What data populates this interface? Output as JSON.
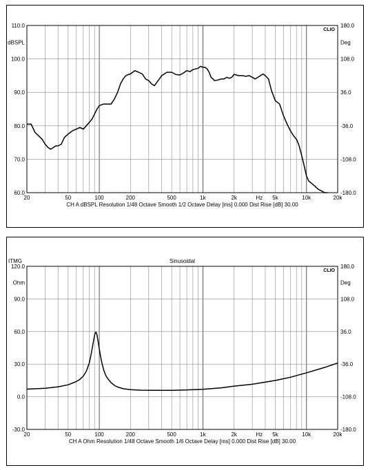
{
  "chart_data": [
    {
      "type": "line",
      "title": "",
      "subtitle": "",
      "brand": "CLIO",
      "left_axis": {
        "unit": "dBSPL",
        "ticks": [
          "110.0",
          "100.0",
          "90.0",
          "80.0",
          "70.0",
          "60.0"
        ],
        "ylim": [
          60,
          110
        ]
      },
      "right_axis": {
        "unit": "Deg",
        "ticks": [
          "180.0",
          "108.0",
          "36.0",
          "-36.0",
          "-108.0",
          "-180.0"
        ],
        "ylim": [
          -180,
          180
        ]
      },
      "x_axis": {
        "scale": "log",
        "xlim": [
          20,
          20000
        ],
        "tick_values": [
          20,
          50,
          100,
          200,
          500,
          1000,
          2000,
          5000,
          10000,
          20000
        ],
        "tick_labels": [
          "20",
          "50",
          "100",
          "200",
          "500",
          "1k",
          "2k",
          "5k",
          "10k",
          "20k"
        ],
        "unit_label": "Hz"
      },
      "info_line": "CH A   dBSPL   Resolution 1/48 Octave   Smooth 1/2 Octave   Delay [ms] 0.000   Dist Rise [dB] 30.00",
      "series": [
        {
          "x": [
            20,
            22,
            24,
            26,
            28,
            30,
            32,
            34,
            36,
            38,
            40,
            43,
            46,
            50,
            55,
            60,
            65,
            70,
            75,
            80,
            85,
            90,
            95,
            100,
            110,
            120,
            130,
            140,
            150,
            160,
            170,
            180,
            190,
            200,
            220,
            240,
            260,
            280,
            300,
            320,
            340,
            360,
            380,
            400,
            450,
            500,
            550,
            600,
            650,
            700,
            750,
            800,
            850,
            900,
            950,
            1000,
            1050,
            1100,
            1150,
            1200,
            1300,
            1400,
            1500,
            1600,
            1700,
            1800,
            1900,
            2000,
            2200,
            2400,
            2600,
            2800,
            3000,
            3200,
            3400,
            3600,
            3800,
            4000,
            4300,
            4600,
            5000,
            5500,
            6000,
            6500,
            7000,
            7500,
            8000,
            8500,
            9000,
            9500,
            10000,
            10500,
            11000,
            11500,
            12000,
            13000,
            14000,
            15000,
            16000
          ],
          "y": [
            80.5,
            80.5,
            78,
            77,
            76,
            74.5,
            73.5,
            73,
            73.5,
            74,
            74,
            74.5,
            76.5,
            77.5,
            78.5,
            79,
            79.5,
            79,
            80,
            81,
            82,
            83.5,
            85,
            86,
            86.5,
            86.5,
            86.5,
            88,
            90,
            92.5,
            94,
            95,
            95.3,
            95.5,
            96.5,
            96,
            95.5,
            94,
            93.5,
            92.5,
            92,
            93,
            94,
            95,
            96,
            96,
            95.3,
            95.2,
            95.8,
            96.5,
            96.2,
            96.8,
            97,
            97.2,
            97.8,
            97.5,
            97.5,
            97,
            96,
            94.5,
            93.5,
            93.7,
            94,
            94,
            94.5,
            94.2,
            94.5,
            95.4,
            95,
            95,
            94.8,
            95,
            94.5,
            94,
            94.5,
            95,
            95.5,
            95,
            94,
            90.5,
            87.5,
            86.5,
            83,
            80.5,
            78.5,
            77,
            76,
            74,
            71,
            68,
            65,
            63.5,
            63,
            62.5,
            62,
            61,
            60.5,
            60,
            60
          ]
        }
      ]
    },
    {
      "type": "line",
      "title": "Sinusoidal",
      "top_left_label": "ITMG",
      "brand": "CLIO",
      "left_axis": {
        "unit": "Ohm",
        "ticks": [
          "120.0",
          "90.0",
          "60.0",
          "30.0",
          "0.0",
          "-30.0"
        ],
        "ylim": [
          -30,
          120
        ]
      },
      "right_axis": {
        "unit": "Deg",
        "ticks": [
          "180.0",
          "108.0",
          "36.0",
          "-36.0",
          "-108.0",
          "-180.0"
        ],
        "ylim": [
          -180,
          180
        ]
      },
      "x_axis": {
        "scale": "log",
        "xlim": [
          20,
          20000
        ],
        "tick_values": [
          20,
          50,
          100,
          200,
          500,
          1000,
          2000,
          5000,
          10000,
          20000
        ],
        "tick_labels": [
          "20",
          "50",
          "100",
          "200",
          "500",
          "1k",
          "2k",
          "5k",
          "10k",
          "20k"
        ],
        "unit_label": "Hz"
      },
      "info_line": "CH A   Ohm   Resolution 1/48 Octave   Smooth 1/6 Octave   Delay [ms] 0.000   Dist Rise [dB] 30.00",
      "series": [
        {
          "x": [
            20,
            30,
            40,
            50,
            60,
            65,
            70,
            75,
            80,
            83,
            86,
            89,
            91,
            93,
            95,
            97,
            100,
            103,
            106,
            110,
            115,
            120,
            130,
            140,
            150,
            170,
            200,
            250,
            300,
            400,
            500,
            700,
            1000,
            1500,
            2000,
            3000,
            5000,
            7000,
            10000,
            15000,
            20000
          ],
          "y": [
            7,
            7.8,
            9.2,
            11,
            14,
            16,
            19,
            23.5,
            31,
            38,
            46,
            54,
            58.5,
            59.5,
            57,
            52,
            44,
            37,
            31,
            25,
            20,
            17,
            13,
            10.5,
            9,
            7.4,
            6.6,
            6.1,
            6,
            5.9,
            5.9,
            6.3,
            6.9,
            8.2,
            9.8,
            11.5,
            15,
            18,
            22,
            27,
            31
          ]
        }
      ]
    }
  ]
}
